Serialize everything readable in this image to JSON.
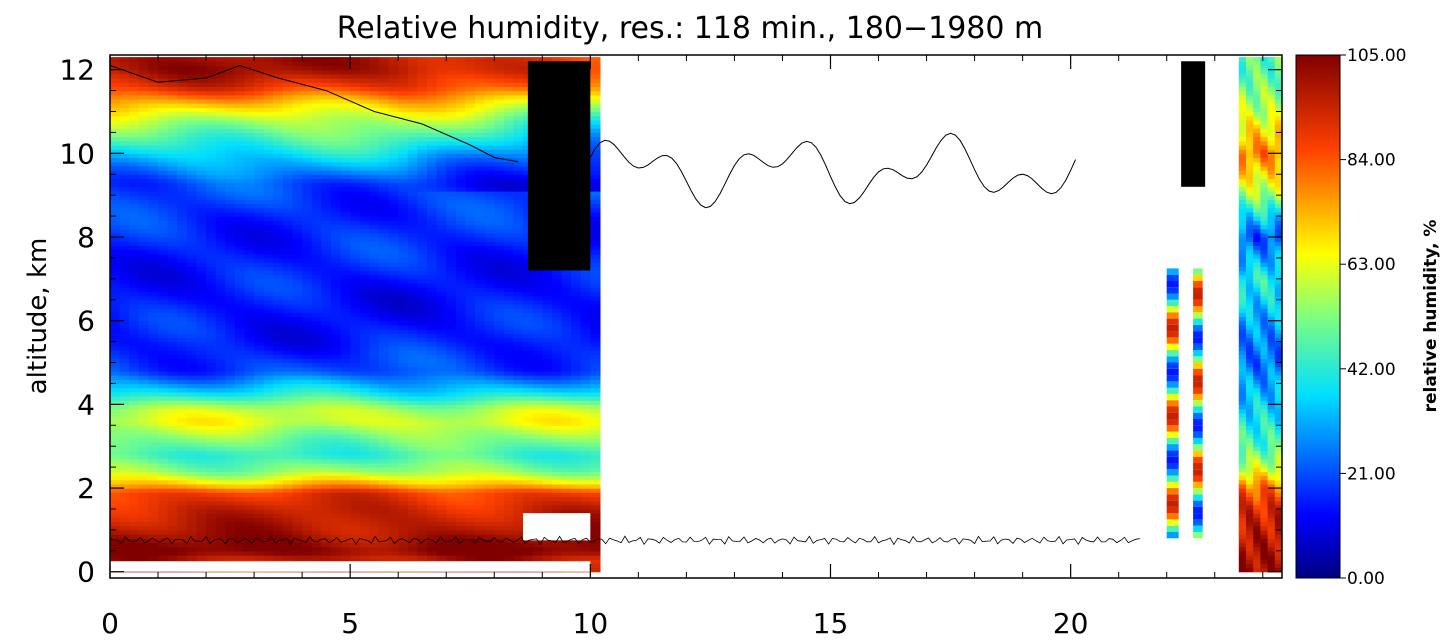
{
  "chart_data": {
    "type": "heatmap",
    "title": "Relative humidity, res.: 118 min., 180−1980 m",
    "xlabel": "",
    "ylabel": "altitude, km",
    "xlim": [
      0,
      24.4
    ],
    "ylim": [
      -0.15,
      12.35
    ],
    "x_ticks": [
      0,
      5,
      10,
      15,
      20
    ],
    "x_tick_labels": [
      "0",
      "5",
      "10",
      "15",
      "20"
    ],
    "y_ticks": [
      0,
      2,
      4,
      6,
      8,
      10,
      12
    ],
    "y_tick_labels": [
      "0",
      "2",
      "4",
      "6",
      "8",
      "10",
      "12"
    ],
    "colorbar": {
      "label": "relative humidity, %",
      "min": 0,
      "max": 105,
      "ticks": [
        0,
        21,
        42,
        63,
        84,
        105
      ],
      "tick_labels": [
        "0.00",
        "21.00",
        "42.00",
        "63.00",
        "84.00",
        "105.00"
      ],
      "colormap": "jet"
    },
    "humidity_profile_0_to_10h": [
      {
        "altitude": 0.1,
        "value": 100
      },
      {
        "altitude": 0.3,
        "value": 96
      },
      {
        "altitude": 0.5,
        "value": 105
      },
      {
        "altitude": 1.0,
        "value": 98
      },
      {
        "altitude": 1.5,
        "value": 94
      },
      {
        "altitude": 1.9,
        "value": 88
      },
      {
        "altitude": 2.1,
        "value": 72
      },
      {
        "altitude": 2.4,
        "value": 55
      },
      {
        "altitude": 2.8,
        "value": 44
      },
      {
        "altitude": 3.2,
        "value": 52
      },
      {
        "altitude": 3.6,
        "value": 62
      },
      {
        "altitude": 3.9,
        "value": 58
      },
      {
        "altitude": 4.3,
        "value": 38
      },
      {
        "altitude": 4.8,
        "value": 20
      },
      {
        "altitude": 5.5,
        "value": 15
      },
      {
        "altitude": 6.5,
        "value": 14
      },
      {
        "altitude": 7.5,
        "value": 16
      },
      {
        "altitude": 8.5,
        "value": 17
      },
      {
        "altitude": 9.3,
        "value": 20
      },
      {
        "altitude": 9.8,
        "value": 32
      },
      {
        "altitude": 10.3,
        "value": 45
      },
      {
        "altitude": 10.8,
        "value": 58
      },
      {
        "altitude": 11.2,
        "value": 72
      },
      {
        "altitude": 11.6,
        "value": 90
      },
      {
        "altitude": 12.0,
        "value": 100
      }
    ],
    "right_profile_23_5_to_24_4h": [
      {
        "altitude": 0.2,
        "value": 100
      },
      {
        "altitude": 0.8,
        "value": 98
      },
      {
        "altitude": 1.5,
        "value": 92
      },
      {
        "altitude": 2.0,
        "value": 82
      },
      {
        "altitude": 2.5,
        "value": 60
      },
      {
        "altitude": 3.0,
        "value": 46
      },
      {
        "altitude": 4.0,
        "value": 36
      },
      {
        "altitude": 5.0,
        "value": 24
      },
      {
        "altitude": 6.0,
        "value": 30
      },
      {
        "altitude": 7.0,
        "value": 42
      },
      {
        "altitude": 8.0,
        "value": 20
      },
      {
        "altitude": 9.0,
        "value": 55
      },
      {
        "altitude": 10.0,
        "value": 80
      },
      {
        "altitude": 11.0,
        "value": 58
      },
      {
        "altitude": 12.0,
        "value": 48
      }
    ],
    "black_regions": [
      {
        "x0": 8.7,
        "x1": 10.0,
        "y0": 7.2,
        "y1": 12.2
      },
      {
        "x0": 22.3,
        "x1": 22.8,
        "y0": 9.2,
        "y1": 12.2
      }
    ],
    "cloud_contour_top": [
      {
        "x": 0.0,
        "y": 12.1
      },
      {
        "x": 1.0,
        "y": 11.7
      },
      {
        "x": 2.0,
        "y": 11.8
      },
      {
        "x": 2.7,
        "y": 12.1
      },
      {
        "x": 3.5,
        "y": 11.8
      },
      {
        "x": 4.5,
        "y": 11.5
      },
      {
        "x": 5.5,
        "y": 11.0
      },
      {
        "x": 6.5,
        "y": 10.7
      },
      {
        "x": 7.5,
        "y": 10.2
      },
      {
        "x": 8.0,
        "y": 9.9
      },
      {
        "x": 8.5,
        "y": 9.8
      }
    ]
  }
}
